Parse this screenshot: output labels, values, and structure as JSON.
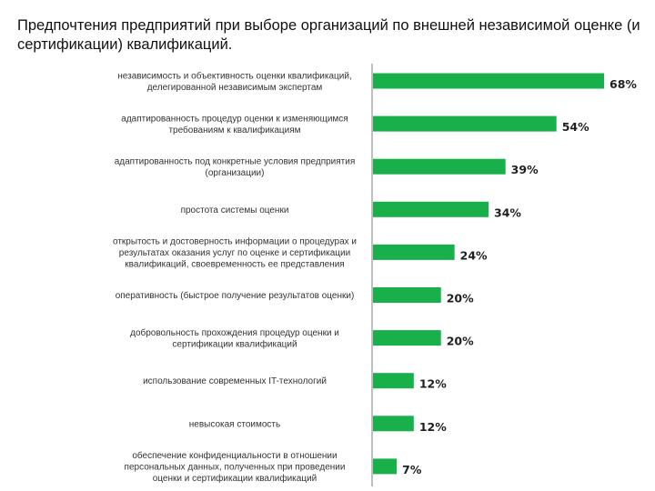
{
  "title": "Предпочтения предприятий при выборе организаций по внешней независимой оценке (и сертификации) квалификаций.",
  "colors": {
    "bar": "#19b04b",
    "axis": "#7f7f7f"
  },
  "chart_data": {
    "type": "bar",
    "orientation": "horizontal",
    "xlim": [
      0,
      70
    ],
    "grid": false,
    "legend": "none",
    "categories": [
      [
        "независимость и объективность оценки квалификаций,",
        "делегированной независимым экспертам"
      ],
      [
        "адаптированность процедур оценки к изменяющимся",
        "требованиям к квалификациям"
      ],
      [
        "адаптированность под конкретные условия предприятия",
        "(организации)"
      ],
      [
        "простота системы оценки"
      ],
      [
        "открытость и достоверность информации о процедурах и",
        "результатах оказания услуг по оценке и сертификации",
        "квалификаций, своевременность ее представления"
      ],
      [
        "оперативность (быстрое получение результатов оценки)"
      ],
      [
        "добровольность прохождения процедур оценки и",
        "сертификации квалификаций"
      ],
      [
        "использование современных IT-технологий"
      ],
      [
        "невысокая стоимость"
      ],
      [
        "обеспечение конфиденциальности в отношении",
        "персональных данных, полученных при проведении",
        "оценки и сертификации квалификаций"
      ]
    ],
    "values": [
      68,
      54,
      39,
      34,
      24,
      20,
      20,
      12,
      12,
      7
    ],
    "value_labels": [
      "68%",
      "54%",
      "39%",
      "34%",
      "24%",
      "20%",
      "20%",
      "12%",
      "12%",
      "7%"
    ]
  }
}
